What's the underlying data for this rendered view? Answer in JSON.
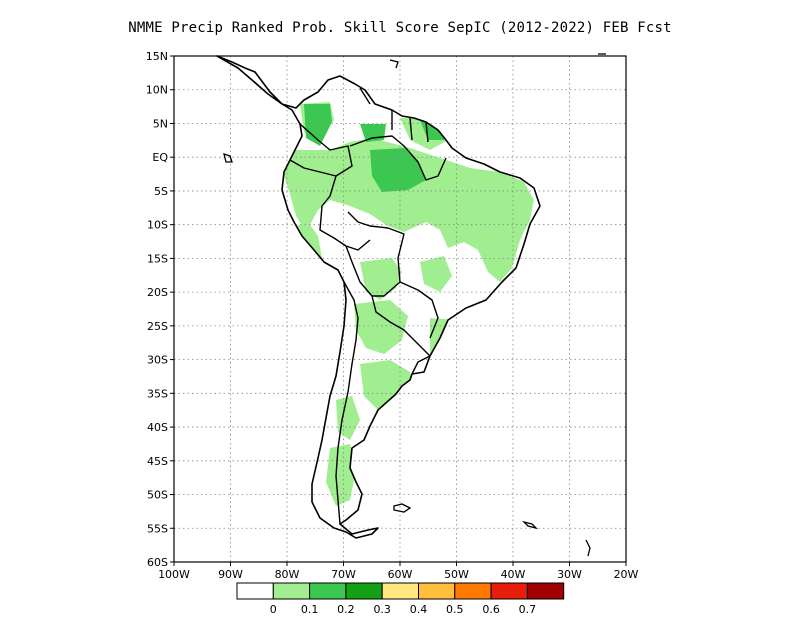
{
  "title": "NMME Precip Ranked Prob. Skill Score SepIC (2012-2022) FEB Fcst",
  "map": {
    "region": "South America",
    "lon_range": [
      -100,
      -20
    ],
    "lat_range": [
      -60,
      15
    ],
    "lat_ticks": [
      "15N",
      "10N",
      "5N",
      "EQ",
      "5S",
      "10S",
      "15S",
      "20S",
      "25S",
      "30S",
      "35S",
      "40S",
      "45S",
      "50S",
      "55S",
      "60S"
    ],
    "lon_ticks": [
      "100W",
      "90W",
      "80W",
      "70W",
      "60W",
      "50W",
      "40W",
      "30W",
      "20W"
    ],
    "gridlines": true,
    "gridline_style": "dotted"
  },
  "legend": {
    "thresholds": [
      "0",
      "0.1",
      "0.2",
      "0.3",
      "0.4",
      "0.5",
      "0.6",
      "0.7"
    ],
    "colors": [
      "#ffffff",
      "#a0ee90",
      "#3cc850",
      "#14a014",
      "#ffe882",
      "#ffbe3c",
      "#ff7800",
      "#e61e0a",
      "#a00000"
    ]
  },
  "skill_colors": {
    "light": "#a0ee90",
    "medium": "#3cc850"
  }
}
